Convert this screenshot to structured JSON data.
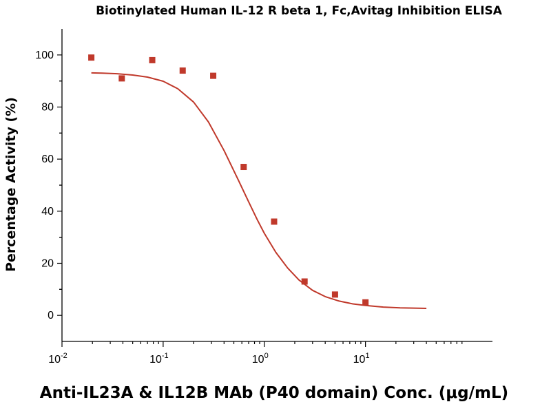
{
  "chart_data": {
    "type": "scatter",
    "title": "Biotinylated Human IL-12 R beta 1, Fc,Avitag Inhibition ELISA",
    "xlabel": "Anti-IL23A & IL12B MAb (P40 domain) Conc. (μg/mL)",
    "ylabel": "Percentage Activity (%)",
    "x_scale": "log",
    "xlim": [
      0.01,
      180
    ],
    "ylim": [
      -10,
      110
    ],
    "x_ticks": [
      {
        "value": 0.01,
        "base": "10",
        "exp": "-2"
      },
      {
        "value": 0.1,
        "base": "10",
        "exp": "-1"
      },
      {
        "value": 1,
        "base": "10",
        "exp": "0"
      },
      {
        "value": 10,
        "base": "10",
        "exp": "1"
      }
    ],
    "y_ticks": [
      0,
      20,
      40,
      60,
      80,
      100
    ],
    "grid": false,
    "series": [
      {
        "type": "scatter",
        "color": "#c0392b",
        "x": [
          0.0195,
          0.039,
          0.078,
          0.156,
          0.3125,
          0.625,
          1.25,
          2.5,
          5,
          10
        ],
        "y": [
          99,
          91,
          98,
          94,
          92,
          57,
          36,
          13,
          8,
          5
        ]
      },
      {
        "type": "line",
        "color": "#c0392b",
        "x": [
          0.0195,
          0.025,
          0.035,
          0.05,
          0.07,
          0.1,
          0.14,
          0.2,
          0.28,
          0.4,
          0.55,
          0.7,
          0.85,
          1,
          1.3,
          1.7,
          2.2,
          3,
          4,
          5.5,
          7.5,
          10,
          15,
          22,
          30,
          40
        ],
        "y": [
          93.1,
          93.0,
          92.8,
          92.3,
          91.5,
          89.9,
          87.0,
          81.9,
          74.3,
          63.3,
          52.2,
          43.6,
          36.8,
          31.5,
          24.2,
          18.2,
          13.6,
          9.6,
          7.2,
          5.5,
          4.4,
          3.8,
          3.2,
          2.9,
          2.8,
          2.7
        ]
      }
    ]
  }
}
